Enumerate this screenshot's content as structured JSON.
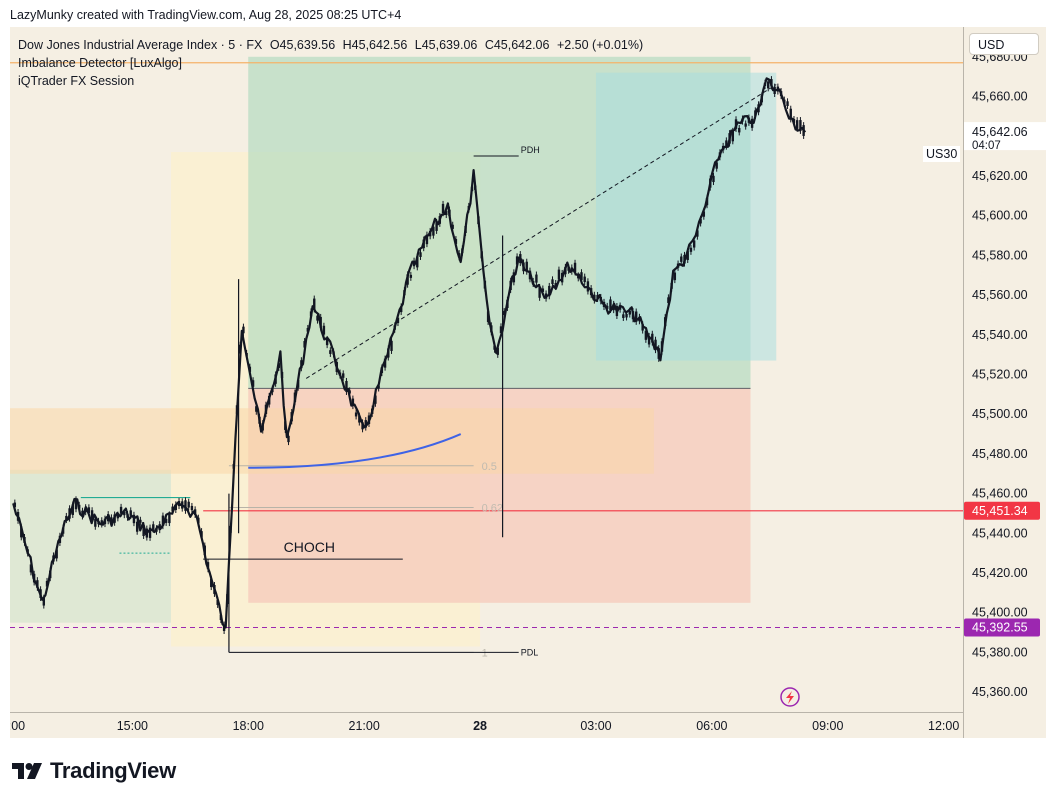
{
  "header": {
    "text": "LazyMunky created with TradingView.com, Aug 28, 2025 08:25 UTC+4"
  },
  "legend": {
    "title": "Dow Jones Industrial Average Index · 5 · FX",
    "open": "O45,639.56",
    "high": "H45,642.56",
    "low": "L45,639.06",
    "close": "C45,642.06",
    "change": "+2.50 (+0.01%)",
    "indicators": [
      "Imbalance Detector [LuxAlgo]",
      "iQTrader FX Session"
    ]
  },
  "price_axis": {
    "currency": "USD",
    "symbol": "US30",
    "last_price": "45,642.06",
    "countdown": "04:07",
    "label_red": "45,451.34",
    "label_purple": "45,392.55"
  },
  "annotations": {
    "pdh": "PDH",
    "pdl": "PDL",
    "choch": "CHOCH",
    "fib_05": "0.5",
    "fib_062": "0.62",
    "fib_1": "1"
  },
  "branding": {
    "logo_text": "TradingView"
  },
  "colors": {
    "background": "#f5efe3",
    "up_candle": "#131722",
    "down_candle": "#131722",
    "target_zone": "#b5dcc0",
    "stop_zone": "#f5c9bb",
    "imbalance_zone": "#a9dfe0",
    "orange_line": "#f5b36a",
    "red_line": "#f23645",
    "purple_line": "#9c27b0",
    "blue_curve": "#3f63e6",
    "green_level": "#22ab94"
  },
  "chart_data": {
    "type": "candlestick",
    "ylim": [
      45350,
      45695
    ],
    "yticks": [
      45360,
      45380,
      45400,
      45420,
      45440,
      45460,
      45480,
      45500,
      45520,
      45540,
      45560,
      45580,
      45600,
      45620,
      45640,
      45660,
      45680
    ],
    "ytick_labels": [
      "45,360.00",
      "45,380.00",
      "45,400.00",
      "45,420.00",
      "45,440.00",
      "45,460.00",
      "45,480.00",
      "45,500.00",
      "45,520.00",
      "45,540.00",
      "45,560.00",
      "45,580.00",
      "45,600.00",
      "45,620.00",
      "45,640.00",
      "45,660.00",
      "45,680.00"
    ],
    "xlim": [
      "Aug 27 11:50",
      "Aug 28 12:30"
    ],
    "xticks": [
      {
        "time": "Aug 27 12:00",
        "label": ":00",
        "bold": false
      },
      {
        "time": "Aug 27 15:00",
        "label": "15:00",
        "bold": false
      },
      {
        "time": "Aug 27 18:00",
        "label": "18:00",
        "bold": false
      },
      {
        "time": "Aug 27 21:00",
        "label": "21:00",
        "bold": false
      },
      {
        "time": "Aug 28 00:00",
        "label": "28",
        "bold": true
      },
      {
        "time": "Aug 28 03:00",
        "label": "03:00",
        "bold": false
      },
      {
        "time": "Aug 28 06:00",
        "label": "06:00",
        "bold": false
      },
      {
        "time": "Aug 28 09:00",
        "label": "09:00",
        "bold": false
      },
      {
        "time": "Aug 28 12:00",
        "label": "12:00",
        "bold": false
      }
    ],
    "price_path": [
      {
        "time": "Aug 27 11:55",
        "price": 45455
      },
      {
        "time": "Aug 27 12:40",
        "price": 45405
      },
      {
        "time": "Aug 27 13:10",
        "price": 45440
      },
      {
        "time": "Aug 27 13:30",
        "price": 45455
      },
      {
        "time": "Aug 27 14:10",
        "price": 45445
      },
      {
        "time": "Aug 27 14:50",
        "price": 45450
      },
      {
        "time": "Aug 27 15:30",
        "price": 45440
      },
      {
        "time": "Aug 27 16:20",
        "price": 45455
      },
      {
        "time": "Aug 27 16:40",
        "price": 45448
      },
      {
        "time": "Aug 27 17:00",
        "price": 45420
      },
      {
        "time": "Aug 27 17:25",
        "price": 45390
      },
      {
        "time": "Aug 27 17:40",
        "price": 45490
      },
      {
        "time": "Aug 27 17:50",
        "price": 45545
      },
      {
        "time": "Aug 27 18:20",
        "price": 45490
      },
      {
        "time": "Aug 27 18:50",
        "price": 45530
      },
      {
        "time": "Aug 27 19:00",
        "price": 45485
      },
      {
        "time": "Aug 27 19:20",
        "price": 45520
      },
      {
        "time": "Aug 27 19:40",
        "price": 45555
      },
      {
        "time": "Aug 27 20:30",
        "price": 45515
      },
      {
        "time": "Aug 27 21:00",
        "price": 45490
      },
      {
        "time": "Aug 27 21:50",
        "price": 45545
      },
      {
        "time": "Aug 27 22:10",
        "price": 45570
      },
      {
        "time": "Aug 27 22:40",
        "price": 45590
      },
      {
        "time": "Aug 27 23:10",
        "price": 45605
      },
      {
        "time": "Aug 27 23:30",
        "price": 45575
      },
      {
        "time": "Aug 27 23:50",
        "price": 45620
      },
      {
        "time": "Aug 28 00:10",
        "price": 45555
      },
      {
        "time": "Aug 28 00:25",
        "price": 45530
      },
      {
        "time": "Aug 28 00:45",
        "price": 45560
      },
      {
        "time": "Aug 28 01:00",
        "price": 45580
      },
      {
        "time": "Aug 28 01:40",
        "price": 45560
      },
      {
        "time": "Aug 28 02:20",
        "price": 45575
      },
      {
        "time": "Aug 28 03:10",
        "price": 45555
      },
      {
        "time": "Aug 28 04:00",
        "price": 45550
      },
      {
        "time": "Aug 28 04:40",
        "price": 45530
      },
      {
        "time": "Aug 28 05:00",
        "price": 45570
      },
      {
        "time": "Aug 28 05:30",
        "price": 45585
      },
      {
        "time": "Aug 28 05:50",
        "price": 45605
      },
      {
        "time": "Aug 28 06:10",
        "price": 45630
      },
      {
        "time": "Aug 28 06:40",
        "price": 45645
      },
      {
        "time": "Aug 28 07:10",
        "price": 45650
      },
      {
        "time": "Aug 28 07:25",
        "price": 45668
      },
      {
        "time": "Aug 28 07:50",
        "price": 45660
      },
      {
        "time": "Aug 28 08:05",
        "price": 45648
      },
      {
        "time": "Aug 28 08:25",
        "price": 45642
      }
    ],
    "wicks": [
      {
        "time": "Aug 27 17:30",
        "low": 45380,
        "high": 45460
      },
      {
        "time": "Aug 27 17:45",
        "low": 45440,
        "high": 45568
      },
      {
        "time": "Aug 28 00:35",
        "low": 45438,
        "high": 45590
      }
    ],
    "zones": [
      {
        "name": "target",
        "t1": "Aug 27 18:00",
        "t2": "Aug 28 07:00",
        "p1": 45513,
        "p2": 45680
      },
      {
        "name": "stop",
        "t1": "Aug 27 18:00",
        "t2": "Aug 28 07:00",
        "p1": 45405,
        "p2": 45513
      },
      {
        "name": "imbalance-top",
        "t1": "Aug 28 03:00",
        "t2": "Aug 28 07:40",
        "p1": 45527,
        "p2": 45672
      },
      {
        "name": "session-yellow",
        "t1": "Aug 27 16:00",
        "t2": "Aug 28 00:00",
        "p1": 45383,
        "p2": 45632
      },
      {
        "name": "orange-imbalance",
        "t1": "Aug 27 11:50",
        "t2": "Aug 28 04:30",
        "p1": 45470,
        "p2": 45503
      },
      {
        "name": "left-green",
        "t1": "Aug 27 11:50",
        "t2": "Aug 27 16:00",
        "p1": 45395,
        "p2": 45472
      }
    ],
    "levels": [
      {
        "name": "orange-line",
        "price": 45677
      },
      {
        "name": "red-line",
        "price": 45451.34
      },
      {
        "name": "purple-dashed",
        "price": 45392.55
      },
      {
        "name": "pdh",
        "price": 45630
      },
      {
        "name": "pdl",
        "price": 45380
      },
      {
        "name": "choch",
        "price": 45427
      },
      {
        "name": "fib-05",
        "price": 45474
      },
      {
        "name": "fib-062",
        "price": 45453
      },
      {
        "name": "fib-1",
        "price": 45380
      }
    ]
  }
}
